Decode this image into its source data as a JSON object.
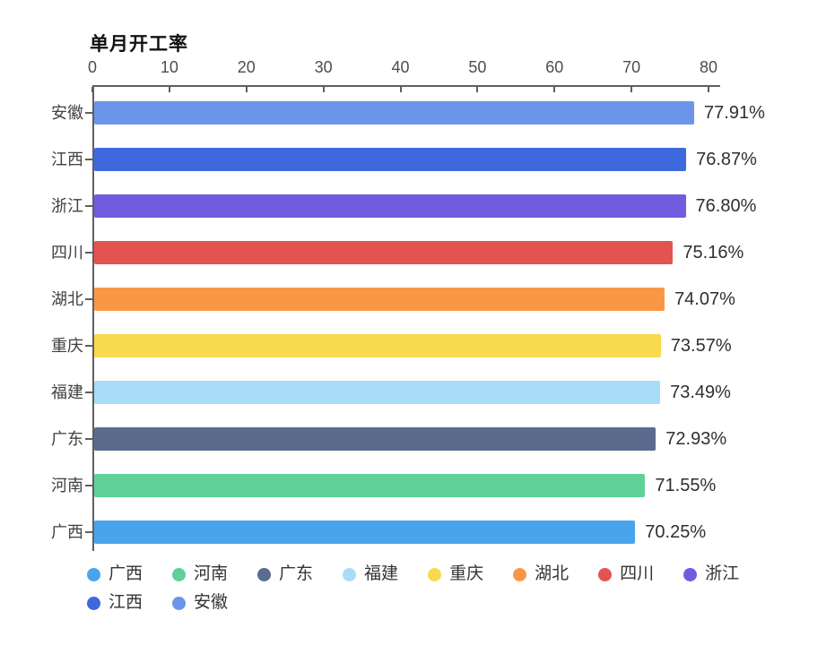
{
  "title": "单月开工率",
  "chart_data": {
    "type": "bar",
    "orientation": "horizontal",
    "title": "单月开工率",
    "categories": [
      "安徽",
      "江西",
      "浙江",
      "四川",
      "湖北",
      "重庆",
      "福建",
      "广东",
      "河南",
      "广西"
    ],
    "values": [
      77.91,
      76.87,
      76.8,
      75.16,
      74.07,
      73.57,
      73.49,
      72.93,
      71.55,
      70.25
    ],
    "value_labels": [
      "77.91%",
      "76.87%",
      "76.80%",
      "75.16%",
      "74.07%",
      "73.57%",
      "73.49%",
      "72.93%",
      "71.55%",
      "70.25%"
    ],
    "colors": [
      "#6b95e8",
      "#3e68de",
      "#715cdf",
      "#e25352",
      "#f99747",
      "#f8da4e",
      "#a9ddf7",
      "#5a6b8e",
      "#60d09b",
      "#4aa4ec"
    ],
    "xlim": [
      0,
      80
    ],
    "xticks": [
      0,
      10,
      20,
      30,
      40,
      50,
      60,
      70,
      80
    ],
    "grid": false,
    "legend_position": "bottom",
    "legend": [
      "广西",
      "河南",
      "广东",
      "福建",
      "重庆",
      "湖北",
      "四川",
      "浙江",
      "江西",
      "安徽"
    ]
  }
}
